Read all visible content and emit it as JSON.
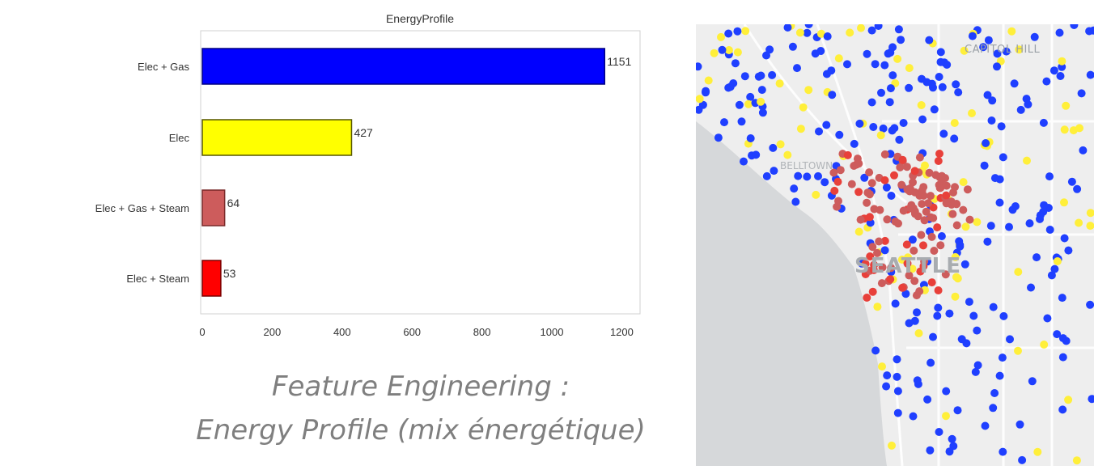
{
  "chart_data": {
    "type": "bar",
    "orientation": "horizontal",
    "title": "EnergyProfile",
    "categories": [
      "Elec + Gas",
      "Elec",
      "Elec + Gas + Steam",
      "Elec + Steam"
    ],
    "values": [
      1151,
      427,
      64,
      53
    ],
    "data_labels": [
      "1151",
      "427",
      "64",
      "53"
    ],
    "colors": [
      "#0000ff",
      "#ffff00",
      "#cd5c5c",
      "#ff0000"
    ],
    "xlim": [
      0,
      1250
    ],
    "xticks": [
      0,
      200,
      400,
      600,
      800,
      1000,
      1200
    ],
    "xlabel": "",
    "ylabel": "",
    "grid": false
  },
  "caption": {
    "line1": "Feature Engineering :",
    "line2": "Energy Profile (mix énergétique)"
  },
  "map": {
    "labels": {
      "capitol_hill": "CAPITOL HILL",
      "city": "SEATTLE",
      "belltown": "BELLTOWN"
    },
    "point_colors": {
      "elec_gas": "#1f3fff",
      "elec": "#ffef3a",
      "elec_gas_steam": "#cd5c5c",
      "elec_steam": "#e8403a"
    }
  }
}
